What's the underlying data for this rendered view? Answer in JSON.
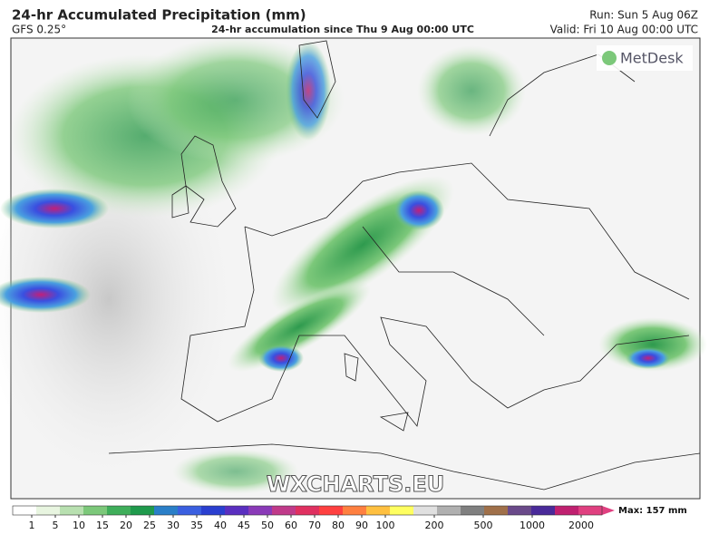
{
  "header": {
    "title": "24-hr Accumulated Precipitation (mm)",
    "model": "GFS 0.25°",
    "subtitle": "24-hr accumulation since Thu 9 Aug 00:00 UTC",
    "run": "Run: Sun 5 Aug 06Z",
    "valid": "Valid: Fri 10 Aug 00:00 UTC"
  },
  "logo": "MetDesk",
  "watermark": "WXCHARTS.EU",
  "colorbar": {
    "ticks": [
      1,
      5,
      10,
      15,
      20,
      25,
      30,
      35,
      40,
      45,
      50,
      60,
      70,
      80,
      90,
      100,
      200,
      500,
      1000,
      2000
    ],
    "colors": [
      "#ffffff",
      "#e8f5e0",
      "#b8e0b0",
      "#7cc87a",
      "#3fae5a",
      "#1f9a4c",
      "#2a7fc8",
      "#3a5fe0",
      "#2a3fd0",
      "#5a2fc0",
      "#8a3ab8",
      "#c03a8a",
      "#e03060",
      "#ff4040",
      "#ff8040",
      "#ffc040",
      "#ffff60",
      "#e0e0e0",
      "#b0b0b0",
      "#808080",
      "#a0704a",
      "#6a4a8a",
      "#4a2a9a",
      "#c02070",
      "#e04080"
    ],
    "max": "Max: 157 mm"
  }
}
